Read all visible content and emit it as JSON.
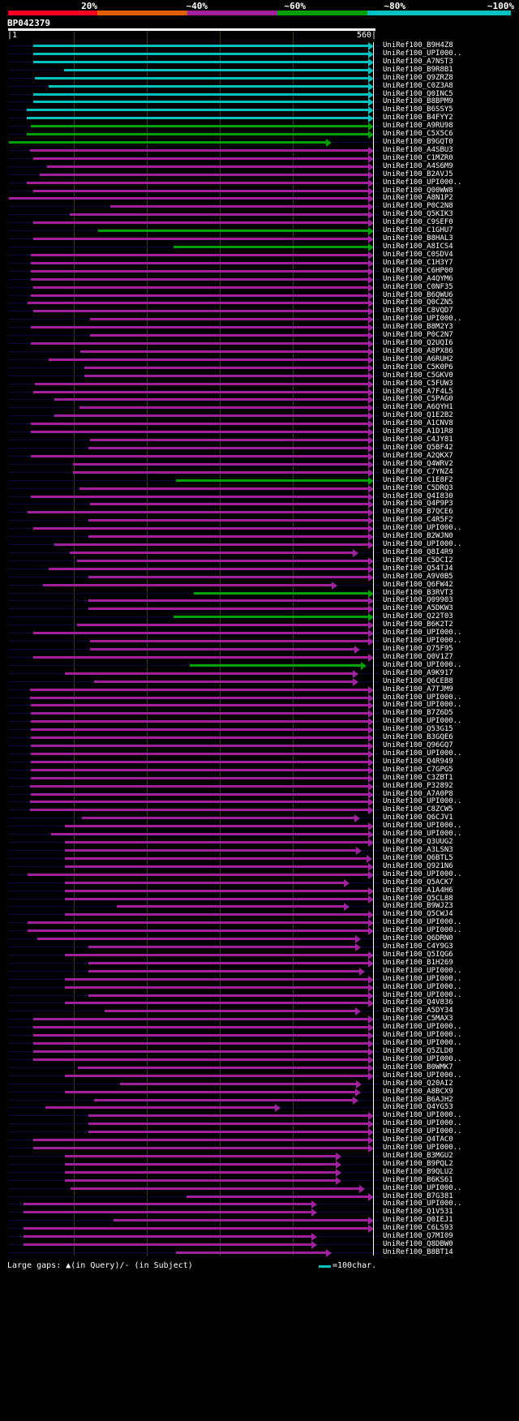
{
  "header": {
    "percent_labels": [
      "20%",
      "~40%",
      "~60%",
      "~80%",
      "~100%"
    ],
    "percent_colors": [
      "#ff0020",
      "#e06000",
      "#a020a0",
      "#00a000",
      "#00c0c0"
    ],
    "query_name": "BP042379",
    "query_start": "|1",
    "query_end": "560|"
  },
  "colors": {
    "c": "#00c0c0",
    "g": "#00a000",
    "m": "#a020a0"
  },
  "rows": [
    [
      "UniRef100_B9H4Z8",
      40,
      560,
      "c"
    ],
    [
      "UniRef100_UPI000..",
      40,
      560,
      "c"
    ],
    [
      "UniRef100_A7NST3",
      40,
      560,
      "c"
    ],
    [
      "UniRef100_B9R8B1",
      87,
      560,
      "c"
    ],
    [
      "UniRef100_Q9ZRZ8",
      42,
      560,
      "c"
    ],
    [
      "UniRef100_C0Z3A8",
      63,
      560,
      "c"
    ],
    [
      "UniRef100_Q0INC5",
      40,
      560,
      "c"
    ],
    [
      "UniRef100_B8BPM9",
      40,
      560,
      "c"
    ],
    [
      "UniRef100_B6SSY5",
      29,
      560,
      "c"
    ],
    [
      "UniRef100_B4FYY2",
      29,
      560,
      "c"
    ],
    [
      "UniRef100_A9RU98",
      36,
      560,
      "g"
    ],
    [
      "UniRef100_C5X5C6",
      29,
      560,
      "g"
    ],
    [
      "UniRef100_B9GQT0",
      2,
      495,
      "g"
    ],
    [
      "UniRef100_A4SBU3",
      34,
      560,
      "m"
    ],
    [
      "UniRef100_C1MZR0",
      40,
      560,
      "m"
    ],
    [
      "UniRef100_A4S6M9",
      61,
      560,
      "m"
    ],
    [
      "UniRef100_B2AVJ5",
      50,
      560,
      "m"
    ],
    [
      "UniRef100_UPI000..",
      29,
      560,
      "m"
    ],
    [
      "UniRef100_Q00WW8",
      39,
      560,
      "m"
    ],
    [
      "UniRef100_A8N1P2",
      2,
      560,
      "m"
    ],
    [
      "UniRef100_P0C2N8",
      158,
      560,
      "m"
    ],
    [
      "UniRef100_Q5KIK3",
      95,
      560,
      "m"
    ],
    [
      "UniRef100_C9SEF0",
      40,
      560,
      "m"
    ],
    [
      "UniRef100_C1GHU7",
      139,
      560,
      "g"
    ],
    [
      "UniRef100_B8HAL3",
      40,
      560,
      "m"
    ],
    [
      "UniRef100_A8ICS4",
      254,
      560,
      "g"
    ],
    [
      "UniRef100_C0SDV4",
      36,
      560,
      "m"
    ],
    [
      "UniRef100_C1H3Y7",
      36,
      560,
      "m"
    ],
    [
      "UniRef100_C6HP00",
      36,
      560,
      "m"
    ],
    [
      "UniRef100_A4QYM6",
      36,
      560,
      "m"
    ],
    [
      "UniRef100_C0NF35",
      39,
      560,
      "m"
    ],
    [
      "UniRef100_B6QWU6",
      36,
      560,
      "m"
    ],
    [
      "UniRef100_Q0CZN5",
      31,
      560,
      "m"
    ],
    [
      "UniRef100_C8VQD7",
      39,
      560,
      "m"
    ],
    [
      "UniRef100_UPI000..",
      127,
      560,
      "m"
    ],
    [
      "UniRef100_B8M2Y3",
      36,
      560,
      "m"
    ],
    [
      "UniRef100_P0C2N7",
      127,
      560,
      "m"
    ],
    [
      "UniRef100_Q2UQI6",
      36,
      560,
      "m"
    ],
    [
      "UniRef100_A8PX86",
      112,
      560,
      "m"
    ],
    [
      "UniRef100_A6RUH2",
      63,
      560,
      "m"
    ],
    [
      "UniRef100_C5K0P6",
      118,
      560,
      "m"
    ],
    [
      "UniRef100_C5GKV0",
      118,
      560,
      "m"
    ],
    [
      "UniRef100_C5FUW3",
      42,
      560,
      "m"
    ],
    [
      "UniRef100_A7F4L5",
      39,
      560,
      "m"
    ],
    [
      "UniRef100_C5PAG0",
      72,
      560,
      "m"
    ],
    [
      "UniRef100_A6QYH1",
      110,
      560,
      "m"
    ],
    [
      "UniRef100_Q1E2B2",
      72,
      560,
      "m"
    ],
    [
      "UniRef100_A1CNV8",
      36,
      560,
      "m"
    ],
    [
      "UniRef100_A1D1R8",
      36,
      560,
      "m"
    ],
    [
      "UniRef100_C4JY81",
      127,
      560,
      "m"
    ],
    [
      "UniRef100_Q5BF42",
      124,
      560,
      "m"
    ],
    [
      "UniRef100_A2QKX7",
      36,
      560,
      "m"
    ],
    [
      "UniRef100_Q4WRV2",
      100,
      560,
      "m"
    ],
    [
      "UniRef100_C7YNZ4",
      100,
      560,
      "m"
    ],
    [
      "UniRef100_C1E8F2",
      258,
      560,
      "g"
    ],
    [
      "UniRef100_C5DRQ3",
      110,
      560,
      "m"
    ],
    [
      "UniRef100_Q4I830",
      36,
      560,
      "m"
    ],
    [
      "UniRef100_Q4P9P3",
      127,
      560,
      "m"
    ],
    [
      "UniRef100_B7QCE6",
      31,
      560,
      "m"
    ],
    [
      "UniRef100_C4R5F2",
      124,
      560,
      "m"
    ],
    [
      "UniRef100_UPI000..",
      39,
      560,
      "m"
    ],
    [
      "UniRef100_B2WJN0",
      124,
      560,
      "m"
    ],
    [
      "UniRef100_UPI000..",
      72,
      560,
      "m"
    ],
    [
      "UniRef100_Q8I4R9",
      95,
      536,
      "m"
    ],
    [
      "UniRef100_C5DCI2",
      106,
      560,
      "m"
    ],
    [
      "UniRef100_Q54TJ4",
      63,
      560,
      "m"
    ],
    [
      "UniRef100_A9V0B5",
      124,
      560,
      "m"
    ],
    [
      "UniRef100_Q6FW42",
      55,
      504,
      "m"
    ],
    [
      "UniRef100_B3RVT3",
      285,
      560,
      "g"
    ],
    [
      "UniRef100_Q09903",
      124,
      560,
      "m"
    ],
    [
      "UniRef100_A5DKW3",
      124,
      560,
      "m"
    ],
    [
      "UniRef100_Q22T03",
      254,
      560,
      "g"
    ],
    [
      "UniRef100_B6K2T2",
      106,
      560,
      "m"
    ],
    [
      "UniRef100_UPI000..",
      40,
      560,
      "m"
    ],
    [
      "UniRef100_UPI000..",
      127,
      560,
      "m"
    ],
    [
      "UniRef100_Q75F95",
      127,
      539,
      "m"
    ],
    [
      "UniRef100_Q0V1Z7",
      40,
      560,
      "m"
    ],
    [
      "UniRef100_UPI000..",
      279,
      549,
      "g"
    ],
    [
      "UniRef100_A9K917",
      88,
      536,
      "m"
    ],
    [
      "UniRef100_Q6CEB8",
      133,
      536,
      "m"
    ],
    [
      "UniRef100_A7TJM9",
      34,
      560,
      "m"
    ],
    [
      "UniRef100_UPI000..",
      34,
      560,
      "m"
    ],
    [
      "UniRef100_UPI000..",
      36,
      560,
      "m"
    ],
    [
      "UniRef100_B7Z6D5",
      36,
      560,
      "m"
    ],
    [
      "UniRef100_UPI000..",
      36,
      560,
      "m"
    ],
    [
      "UniRef100_Q53G15",
      36,
      560,
      "m"
    ],
    [
      "UniRef100_B3GQE6",
      36,
      560,
      "m"
    ],
    [
      "UniRef100_Q96GQ7",
      36,
      560,
      "m"
    ],
    [
      "UniRef100_UPI000..",
      36,
      560,
      "m"
    ],
    [
      "UniRef100_Q4R949",
      36,
      560,
      "m"
    ],
    [
      "UniRef100_C7GPG5",
      36,
      560,
      "m"
    ],
    [
      "UniRef100_C3ZBT1",
      36,
      560,
      "m"
    ],
    [
      "UniRef100_P32892",
      34,
      560,
      "m"
    ],
    [
      "UniRef100_A7A0P8",
      36,
      560,
      "m"
    ],
    [
      "UniRef100_UPI000..",
      34,
      560,
      "m"
    ],
    [
      "UniRef100_C8ZCW5",
      34,
      560,
      "m"
    ],
    [
      "UniRef100_Q6CJV1",
      114,
      539,
      "m"
    ],
    [
      "UniRef100_UPI000..",
      88,
      560,
      "m"
    ],
    [
      "UniRef100_UPI000..",
      67,
      560,
      "m"
    ],
    [
      "UniRef100_Q3UUG2",
      88,
      560,
      "m"
    ],
    [
      "UniRef100_A3LSN3",
      88,
      541,
      "m"
    ],
    [
      "UniRef100_Q6BTL5",
      88,
      557,
      "m"
    ],
    [
      "UniRef100_Q921N6",
      88,
      560,
      "m"
    ],
    [
      "UniRef100_UPI000..",
      31,
      560,
      "m"
    ],
    [
      "UniRef100_Q5ACK7",
      88,
      523,
      "m"
    ],
    [
      "UniRef100_A1A4H6",
      88,
      560,
      "m"
    ],
    [
      "UniRef100_Q5CL88",
      88,
      560,
      "m"
    ],
    [
      "UniRef100_B9WJZ3",
      168,
      523,
      "m"
    ],
    [
      "UniRef100_Q5CWJ4",
      88,
      560,
      "m"
    ],
    [
      "UniRef100_UPI000..",
      31,
      560,
      "m"
    ],
    [
      "UniRef100_UPI000..",
      31,
      560,
      "m"
    ],
    [
      "UniRef100_Q6DRN0",
      46,
      540,
      "m"
    ],
    [
      "UniRef100_C4Y9G3",
      124,
      540,
      "m"
    ],
    [
      "UniRef100_Q5IQG6",
      88,
      560,
      "m"
    ],
    [
      "UniRef100_B1H269",
      124,
      560,
      "m"
    ],
    [
      "UniRef100_UPI000..",
      124,
      546,
      "m"
    ],
    [
      "UniRef100_UPI000..",
      88,
      560,
      "m"
    ],
    [
      "UniRef100_UPI000..",
      88,
      560,
      "m"
    ],
    [
      "UniRef100_UPI000..",
      124,
      560,
      "m"
    ],
    [
      "UniRef100_Q4V836",
      88,
      560,
      "m"
    ],
    [
      "UniRef100_A5DY34",
      149,
      540,
      "m"
    ],
    [
      "UniRef100_C5MAX3",
      40,
      560,
      "m"
    ],
    [
      "UniRef100_UPI000..",
      40,
      560,
      "m"
    ],
    [
      "UniRef100_UPI000..",
      40,
      560,
      "m"
    ],
    [
      "UniRef100_UPI000..",
      40,
      560,
      "m"
    ],
    [
      "UniRef100_Q5ZLD0",
      40,
      560,
      "m"
    ],
    [
      "UniRef100_UPI000..",
      40,
      560,
      "m"
    ],
    [
      "UniRef100_B0WMK7",
      108,
      560,
      "m"
    ],
    [
      "UniRef100_UPI000..",
      88,
      560,
      "m"
    ],
    [
      "UniRef100_Q20AI2",
      172,
      541,
      "m"
    ],
    [
      "UniRef100_A8BCX9",
      88,
      540,
      "m"
    ],
    [
      "UniRef100_B6AJH2",
      133,
      536,
      "m"
    ],
    [
      "UniRef100_Q4YG53",
      58,
      417,
      "m"
    ],
    [
      "UniRef100_UPI000..",
      124,
      560,
      "m"
    ],
    [
      "UniRef100_UPI000..",
      124,
      560,
      "m"
    ],
    [
      "UniRef100_UPI000..",
      124,
      560,
      "m"
    ],
    [
      "UniRef100_Q4TAC0",
      40,
      560,
      "m"
    ],
    [
      "UniRef100_UPI000..",
      40,
      560,
      "m"
    ],
    [
      "UniRef100_B3MGU2",
      88,
      510,
      "m"
    ],
    [
      "UniRef100_B9PQL2",
      88,
      510,
      "m"
    ],
    [
      "UniRef100_B9QLU2",
      88,
      510,
      "m"
    ],
    [
      "UniRef100_B6KS61",
      88,
      510,
      "m"
    ],
    [
      "UniRef100_UPI000..",
      97,
      546,
      "m"
    ],
    [
      "UniRef100_B7G381",
      274,
      560,
      "m"
    ],
    [
      "UniRef100_UPI000..",
      25,
      473,
      "m"
    ],
    [
      "UniRef100_Q1V531",
      25,
      473,
      "m"
    ],
    [
      "UniRef100_Q0IEJ1",
      163,
      560,
      "m"
    ],
    [
      "UniRef100_C6LS93",
      25,
      560,
      "m"
    ],
    [
      "UniRef100_Q7MI09",
      25,
      473,
      "m"
    ],
    [
      "UniRef100_Q8DBW0",
      25,
      473,
      "m"
    ],
    [
      "UniRef100_B8BT14",
      258,
      496,
      "m"
    ]
  ],
  "legend": {
    "gaps": "Large gaps: ▲(in Query)/- (in Subject)",
    "scale": "=100char."
  }
}
